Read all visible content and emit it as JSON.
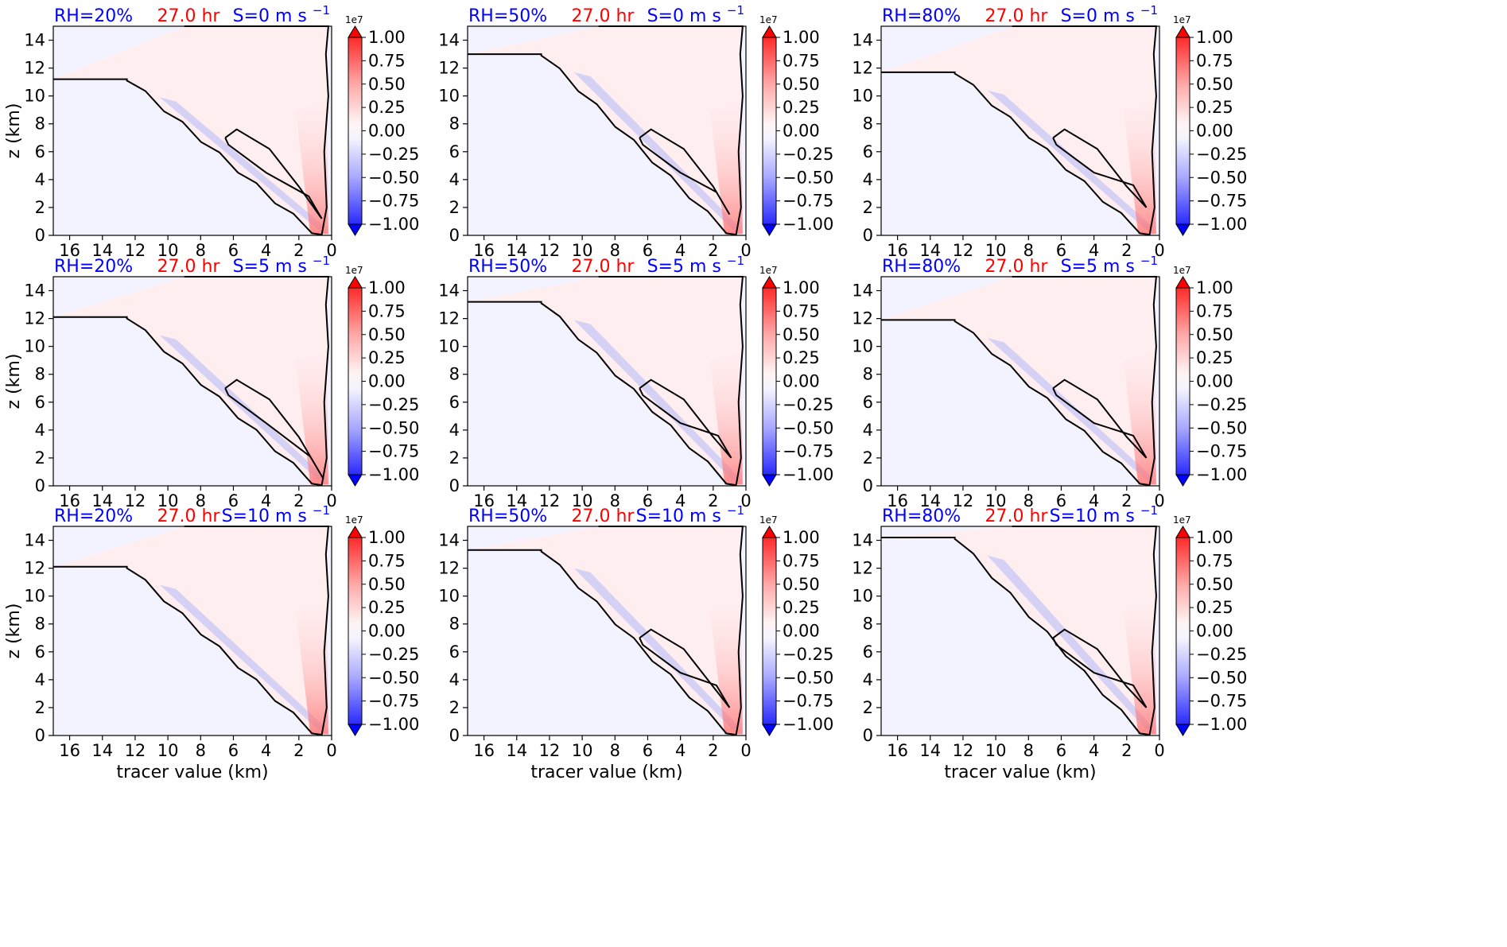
{
  "figure": {
    "time_label": "27.0 hr",
    "cbar_exponent": "1e7",
    "colors": {
      "rh": "#0000ff",
      "time": "#ff0000",
      "shear": "#0000ff",
      "contour": "#000000"
    }
  },
  "chart_data": [
    {
      "type": "heatmap",
      "row": 0,
      "col": 0,
      "rh": "RH=20%",
      "time": "27.0 hr",
      "shear": "S=0 m s",
      "shear_exp": "−1",
      "ylabel": "z (km)",
      "xlabel": "",
      "xlim": [
        17,
        0
      ],
      "ylim": [
        0,
        15
      ],
      "xticks": [
        16,
        14,
        12,
        10,
        8,
        6,
        4,
        2,
        0
      ],
      "yticks": [
        0,
        2,
        4,
        6,
        8,
        10,
        12,
        14
      ],
      "shape": {
        "hz": 11.2,
        "peak_x": 0.6,
        "peak_y": 2.2,
        "inner": true
      },
      "colorbar": {
        "ticks": [
          "1.00",
          "0.75",
          "0.50",
          "0.25",
          "0.00",
          "−0.25",
          "−0.50",
          "−0.75",
          "−1.00"
        ],
        "range": [
          -1.0,
          1.0
        ],
        "exponent": "1e7"
      }
    },
    {
      "type": "heatmap",
      "row": 0,
      "col": 1,
      "rh": "RH=50%",
      "time": "27.0 hr",
      "shear": "S=0 m s",
      "shear_exp": "−1",
      "ylabel": "",
      "xlabel": "",
      "xlim": [
        17,
        0
      ],
      "ylim": [
        0,
        15
      ],
      "xticks": [
        16,
        14,
        12,
        10,
        8,
        6,
        4,
        2,
        0
      ],
      "yticks": [
        0,
        2,
        4,
        6,
        8,
        10,
        12,
        14
      ],
      "shape": {
        "hz": 13,
        "peak_x": 1.0,
        "peak_y": 2.5,
        "inner": true
      },
      "colorbar": {
        "ticks": [
          "1.00",
          "0.75",
          "0.50",
          "0.25",
          "0.00",
          "−0.25",
          "−0.50",
          "−0.75",
          "−1.00"
        ],
        "range": [
          -1.0,
          1.0
        ],
        "exponent": "1e7"
      }
    },
    {
      "type": "heatmap",
      "row": 0,
      "col": 2,
      "rh": "RH=80%",
      "time": "27.0 hr",
      "shear": "S=0 m s",
      "shear_exp": "−1",
      "ylabel": "",
      "xlabel": "",
      "xlim": [
        17,
        0
      ],
      "ylim": [
        0,
        15
      ],
      "xticks": [
        16,
        14,
        12,
        10,
        8,
        6,
        4,
        2,
        0
      ],
      "yticks": [
        0,
        2,
        4,
        6,
        8,
        10,
        12,
        14
      ],
      "shape": {
        "hz": 11.7,
        "peak_x": 0.8,
        "peak_y": 3.0,
        "inner": true
      },
      "colorbar": {
        "ticks": [
          "1.00",
          "0.75",
          "0.50",
          "0.25",
          "0.00",
          "−0.25",
          "−0.50",
          "−0.75",
          "−1.00"
        ],
        "range": [
          -1.0,
          1.0
        ],
        "exponent": "1e7"
      }
    },
    {
      "type": "heatmap",
      "row": 1,
      "col": 0,
      "rh": "RH=20%",
      "time": "27.0 hr",
      "shear": "S=5 m s",
      "shear_exp": "−1",
      "ylabel": "z (km)",
      "xlabel": "",
      "xlim": [
        17,
        0
      ],
      "ylim": [
        0,
        15
      ],
      "xticks": [
        16,
        14,
        12,
        10,
        8,
        6,
        4,
        2,
        0
      ],
      "yticks": [
        0,
        2,
        4,
        6,
        8,
        10,
        12,
        14
      ],
      "shape": {
        "hz": 12.1,
        "peak_x": 0.5,
        "peak_y": 1.5,
        "inner": true
      },
      "colorbar": {
        "ticks": [
          "1.00",
          "0.75",
          "0.50",
          "0.25",
          "0.00",
          "−0.25",
          "−0.50",
          "−0.75",
          "−1.00"
        ],
        "range": [
          -1.0,
          1.0
        ],
        "exponent": "1e7"
      }
    },
    {
      "type": "heatmap",
      "row": 1,
      "col": 1,
      "rh": "RH=50%",
      "time": "27.0 hr",
      "shear": "S=5 m s",
      "shear_exp": "−1",
      "ylabel": "",
      "xlabel": "",
      "xlim": [
        17,
        0
      ],
      "ylim": [
        0,
        15
      ],
      "xticks": [
        16,
        14,
        12,
        10,
        8,
        6,
        4,
        2,
        0
      ],
      "yticks": [
        0,
        2,
        4,
        6,
        8,
        10,
        12,
        14
      ],
      "shape": {
        "hz": 13.2,
        "peak_x": 0.9,
        "peak_y": 3.0,
        "inner": true
      },
      "colorbar": {
        "ticks": [
          "1.00",
          "0.75",
          "0.50",
          "0.25",
          "0.00",
          "−0.25",
          "−0.50",
          "−0.75",
          "−1.00"
        ],
        "range": [
          -1.0,
          1.0
        ],
        "exponent": "1e7"
      }
    },
    {
      "type": "heatmap",
      "row": 1,
      "col": 2,
      "rh": "RH=80%",
      "time": "27.0 hr",
      "shear": "S=5 m s",
      "shear_exp": "−1",
      "ylabel": "",
      "xlabel": "",
      "xlim": [
        17,
        0
      ],
      "ylim": [
        0,
        15
      ],
      "xticks": [
        16,
        14,
        12,
        10,
        8,
        6,
        4,
        2,
        0
      ],
      "yticks": [
        0,
        2,
        4,
        6,
        8,
        10,
        12,
        14
      ],
      "shape": {
        "hz": 11.9,
        "peak_x": 0.8,
        "peak_y": 3.0,
        "inner": true
      },
      "colorbar": {
        "ticks": [
          "1.00",
          "0.75",
          "0.50",
          "0.25",
          "0.00",
          "−0.25",
          "−0.50",
          "−0.75",
          "−1.00"
        ],
        "range": [
          -1.0,
          1.0
        ],
        "exponent": "1e7"
      }
    },
    {
      "type": "heatmap",
      "row": 2,
      "col": 0,
      "rh": "RH=20%",
      "time": "27.0 hr",
      "shear": "S=10 m s",
      "shear_exp": "−1",
      "ylabel": "z (km)",
      "xlabel": "tracer value (km)",
      "xlim": [
        17,
        0
      ],
      "ylim": [
        0,
        15
      ],
      "xticks": [
        16,
        14,
        12,
        10,
        8,
        6,
        4,
        2,
        0
      ],
      "yticks": [
        0,
        2,
        4,
        6,
        8,
        10,
        12,
        14
      ],
      "shape": {
        "hz": 12.1,
        "peak_x": 0.5,
        "peak_y": 1.2,
        "inner": false
      },
      "colorbar": {
        "ticks": [
          "1.00",
          "0.75",
          "0.50",
          "0.25",
          "0.00",
          "−0.25",
          "−0.50",
          "−0.75",
          "−1.00"
        ],
        "range": [
          -1.0,
          1.0
        ],
        "exponent": "1e7"
      }
    },
    {
      "type": "heatmap",
      "row": 2,
      "col": 1,
      "rh": "RH=50%",
      "time": "27.0 hr",
      "shear": "S=10 m s",
      "shear_exp": "−1",
      "ylabel": "",
      "xlabel": "tracer value (km)",
      "xlim": [
        17,
        0
      ],
      "ylim": [
        0,
        15
      ],
      "xticks": [
        16,
        14,
        12,
        10,
        8,
        6,
        4,
        2,
        0
      ],
      "yticks": [
        0,
        2,
        4,
        6,
        8,
        10,
        12,
        14
      ],
      "shape": {
        "hz": 13.3,
        "peak_x": 1.0,
        "peak_y": 3.0,
        "inner": true
      },
      "colorbar": {
        "ticks": [
          "1.00",
          "0.75",
          "0.50",
          "0.25",
          "0.00",
          "−0.25",
          "−0.50",
          "−0.75",
          "−1.00"
        ],
        "range": [
          -1.0,
          1.0
        ],
        "exponent": "1e7"
      }
    },
    {
      "type": "heatmap",
      "row": 2,
      "col": 2,
      "rh": "RH=80%",
      "time": "27.0 hr",
      "shear": "S=10 m s",
      "shear_exp": "−1",
      "ylabel": "",
      "xlabel": "tracer value (km)",
      "xlim": [
        17,
        0
      ],
      "ylim": [
        0,
        15
      ],
      "xticks": [
        16,
        14,
        12,
        10,
        8,
        6,
        4,
        2,
        0
      ],
      "yticks": [
        0,
        2,
        4,
        6,
        8,
        10,
        12,
        14
      ],
      "shape": {
        "hz": 14.2,
        "peak_x": 0.8,
        "peak_y": 3.0,
        "inner": true
      },
      "colorbar": {
        "ticks": [
          "1.00",
          "0.75",
          "0.50",
          "0.25",
          "0.00",
          "−0.25",
          "−0.50",
          "−0.75",
          "−1.00"
        ],
        "range": [
          -1.0,
          1.0
        ],
        "exponent": "1e7"
      }
    }
  ]
}
